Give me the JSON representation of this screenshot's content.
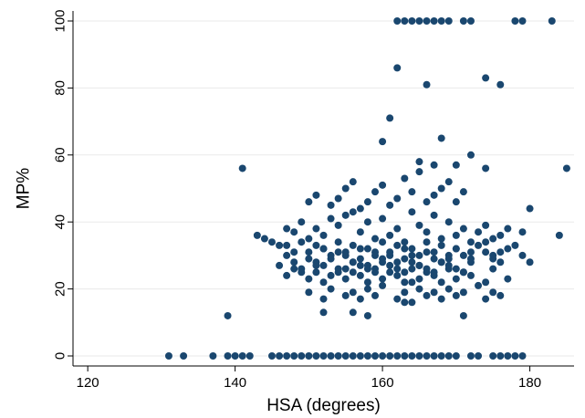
{
  "chart_data": {
    "type": "scatter",
    "title": "",
    "xlabel": "HSA (degrees)",
    "ylabel": "MP%",
    "xlim": [
      118,
      186
    ],
    "ylim": [
      -3,
      103
    ],
    "x_ticks": [
      120,
      140,
      160,
      180
    ],
    "y_ticks": [
      0,
      20,
      40,
      60,
      80,
      100
    ],
    "grid": "horizontal",
    "legend": "none",
    "marker_color": "#1a476f",
    "series": [
      {
        "x": [
          131,
          133,
          137,
          139,
          140,
          141,
          142,
          145,
          146,
          147,
          148,
          149,
          150,
          151,
          152,
          153,
          154,
          155,
          156,
          157,
          158,
          159,
          160,
          161,
          162,
          163,
          164,
          165,
          166,
          167,
          168,
          169,
          170,
          172,
          173,
          175,
          176,
          177,
          178,
          179,
          162,
          163,
          164,
          165,
          166,
          167,
          168,
          169,
          171,
          172,
          178,
          179,
          183,
          162,
          174,
          166,
          176,
          161,
          160,
          168,
          172,
          185,
          141,
          139,
          143,
          144,
          145,
          146,
          147,
          148,
          149,
          150,
          151,
          152,
          153,
          154,
          155,
          156,
          157,
          158,
          159,
          160,
          161,
          162,
          163,
          164,
          165,
          166,
          167,
          168,
          169,
          170,
          171,
          172,
          173,
          174,
          175,
          176,
          177,
          178,
          179,
          180,
          184,
          147,
          148,
          150,
          151,
          152,
          153,
          154,
          155,
          156,
          157,
          158,
          159,
          160,
          161,
          162,
          163,
          164,
          165,
          166,
          167,
          168,
          169,
          170,
          172,
          174,
          175,
          176,
          147,
          149,
          150,
          151,
          152,
          153,
          154,
          155,
          156,
          157,
          158,
          159,
          160,
          161,
          162,
          163,
          164,
          165,
          166,
          167,
          168,
          169,
          170,
          171,
          172,
          174,
          175,
          177,
          150,
          152,
          153,
          155,
          156,
          157,
          158,
          159,
          160,
          162,
          163,
          164,
          165,
          166,
          167,
          168,
          169,
          170,
          171,
          173,
          174,
          175,
          176,
          150,
          151,
          153,
          154,
          155,
          156,
          157,
          158,
          159,
          160,
          161,
          162,
          163,
          164,
          165,
          166,
          167,
          168,
          169,
          170,
          171,
          147,
          148,
          149,
          150,
          151,
          152,
          153,
          154,
          155,
          156,
          157,
          158,
          159,
          160,
          161,
          162,
          163,
          164,
          165,
          166,
          167,
          168,
          169,
          170,
          171,
          172,
          173,
          174,
          175,
          176,
          177,
          179,
          180,
          146,
          148,
          149,
          151,
          152,
          154,
          155,
          156,
          157,
          158,
          159,
          160,
          161,
          162,
          163,
          164,
          165,
          166,
          167,
          168,
          169,
          170,
          171,
          172,
          152,
          156,
          158,
          163,
          164,
          165,
          167,
          170,
          171,
          174
        ],
        "y": [
          0,
          0,
          0,
          0,
          0,
          0,
          0,
          0,
          0,
          0,
          0,
          0,
          0,
          0,
          0,
          0,
          0,
          0,
          0,
          0,
          0,
          0,
          0,
          0,
          0,
          0,
          0,
          0,
          0,
          0,
          0,
          0,
          0,
          0,
          0,
          0,
          0,
          0,
          0,
          0,
          100,
          100,
          100,
          100,
          100,
          100,
          100,
          100,
          100,
          100,
          100,
          100,
          100,
          86,
          83,
          81,
          81,
          71,
          64,
          65,
          60,
          56,
          56,
          12,
          36,
          35,
          34,
          33,
          38,
          37,
          40,
          35,
          38,
          36,
          41,
          39,
          42,
          43,
          37,
          40,
          35,
          41,
          36,
          38,
          34,
          43,
          39,
          37,
          42,
          35,
          40,
          36,
          38,
          34,
          37,
          39,
          35,
          36,
          38,
          33,
          37,
          44,
          36,
          30,
          28,
          31,
          27,
          32,
          29,
          31,
          30,
          28,
          32,
          27,
          31,
          29,
          30,
          28,
          32,
          30,
          27,
          31,
          29,
          28,
          30,
          32,
          29,
          31,
          30,
          28,
          24,
          26,
          23,
          25,
          22,
          24,
          26,
          23,
          25,
          24,
          22,
          26,
          23,
          25,
          24,
          22,
          26,
          23,
          25,
          24,
          22,
          26,
          23,
          25,
          24,
          22,
          26,
          23,
          19,
          17,
          20,
          18,
          19,
          17,
          20,
          18,
          21,
          17,
          19,
          16,
          20,
          18,
          19,
          17,
          20,
          18,
          19,
          21,
          17,
          19,
          18,
          46,
          48,
          45,
          47,
          50,
          52,
          44,
          46,
          49,
          51,
          45,
          47,
          53,
          49,
          55,
          46,
          48,
          50,
          52,
          46,
          49,
          33,
          31,
          34,
          29,
          33,
          32,
          30,
          34,
          31,
          33,
          29,
          32,
          30,
          34,
          31,
          33,
          29,
          32,
          30,
          34,
          31,
          33,
          29,
          32,
          30,
          31,
          33,
          34,
          29,
          31,
          32,
          30,
          28,
          27,
          26,
          25,
          28,
          27,
          25,
          26,
          28,
          27,
          26,
          25,
          28,
          27,
          26,
          25,
          28,
          27,
          26,
          25,
          28,
          27,
          26,
          25,
          28,
          13,
          13,
          12,
          16,
          22,
          58,
          57,
          57,
          12,
          56
        ]
      }
    ]
  }
}
